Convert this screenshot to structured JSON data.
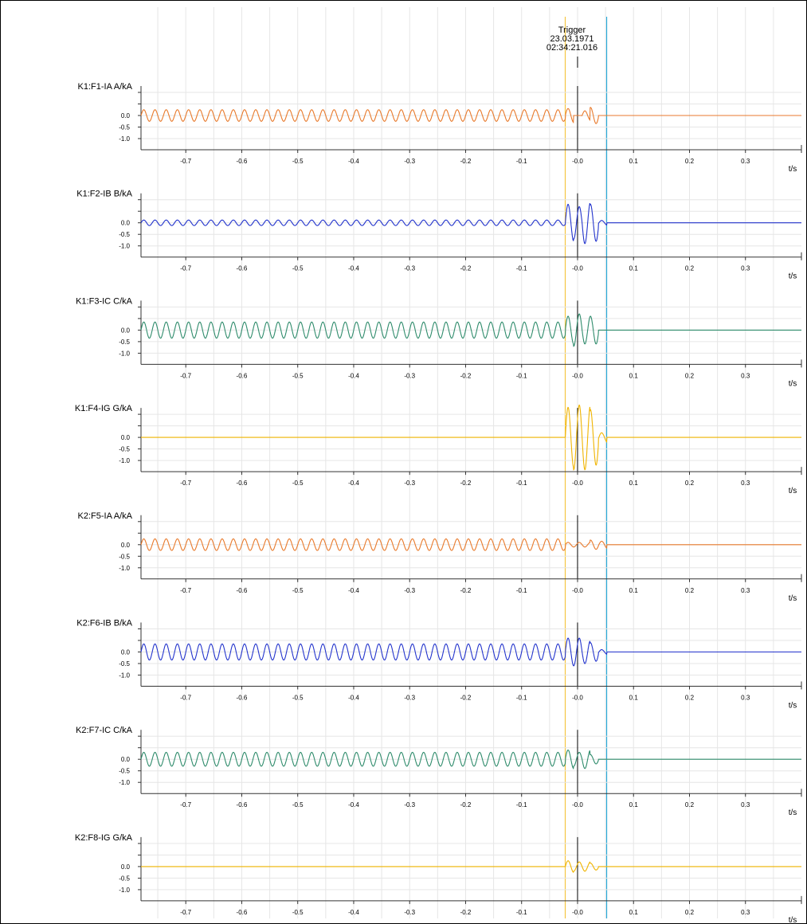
{
  "trigger": {
    "label": "Trigger",
    "date": "23.03.1971",
    "time": "02:34:21.016"
  },
  "axis_unit": "t/s",
  "x_ticks": [
    -0.7,
    -0.6,
    -0.5,
    -0.4,
    -0.3,
    -0.2,
    -0.1,
    0.0,
    0.1,
    0.2,
    0.3
  ],
  "x_tick_labels": [
    "-0.7",
    "-0.6",
    "-0.5",
    "-0.4",
    "-0.3",
    "-0.2",
    "-0.1",
    "-0.0",
    "0.1",
    "0.2",
    "0.3"
  ],
  "y_tick_labels": [
    "0.0",
    "-0.5",
    "-1.0"
  ],
  "colors": {
    "cursor_left": "#f5c542",
    "trigger_line": "#000000",
    "cursor_right": "#29a8d6",
    "grid": "#e6e6e6"
  },
  "chart_data": {
    "type": "line",
    "xlim": [
      -0.78,
      0.4
    ],
    "cursors": {
      "left": -0.022,
      "trigger": 0.0,
      "right": 0.052
    },
    "sampling_note_free": true,
    "series": [
      {
        "name": "K1:F1-IA A/kA",
        "color": "#e87a2c",
        "pre_amp": 0.25,
        "fault": [
          0.3,
          0.0,
          -0.2,
          0.35,
          0.0
        ],
        "post_amp": 0.0
      },
      {
        "name": "K1:F2-IB B/kA",
        "color": "#2233cc",
        "pre_amp": 0.12,
        "fault": [
          0.8,
          0.7,
          0.9,
          0.8,
          0.1
        ],
        "post_amp": 0.0
      },
      {
        "name": "K1:F3-IC C/kA",
        "color": "#2e8b6b",
        "pre_amp": 0.35,
        "fault": [
          0.6,
          0.7,
          0.6,
          0.6,
          0.0
        ],
        "post_amp": 0.0
      },
      {
        "name": "K1:F4-IG G/kA",
        "color": "#f0b400",
        "pre_amp": 0.0,
        "fault": [
          1.3,
          1.4,
          1.4,
          1.2,
          0.2
        ],
        "post_amp": 0.0
      },
      {
        "name": "K2:F5-IA A/kA",
        "color": "#e87a2c",
        "pre_amp": 0.25,
        "fault": [
          0.1,
          0.1,
          0.1,
          0.2,
          0.15
        ],
        "post_amp": 0.0
      },
      {
        "name": "K2:F6-IB B/kA",
        "color": "#2233cc",
        "pre_amp": 0.35,
        "fault": [
          0.6,
          0.6,
          0.5,
          0.4,
          0.1
        ],
        "post_amp": 0.0
      },
      {
        "name": "K2:F7-IC C/kA",
        "color": "#2e8b6b",
        "pre_amp": 0.3,
        "fault": [
          0.4,
          0.3,
          0.4,
          0.2,
          0.0
        ],
        "post_amp": 0.0
      },
      {
        "name": "K2:F8-IG G/kA",
        "color": "#f0b400",
        "pre_amp": 0.0,
        "fault": [
          0.25,
          0.2,
          0.2,
          0.15,
          0.0
        ],
        "post_amp": 0.0
      }
    ],
    "frequency_hz": 50
  }
}
